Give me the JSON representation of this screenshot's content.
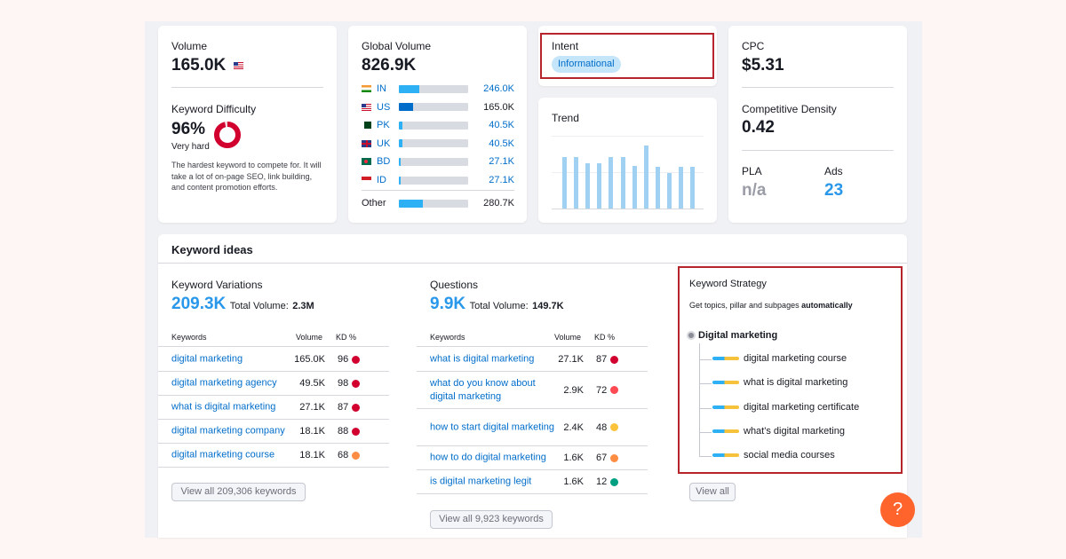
{
  "volume": {
    "label": "Volume",
    "value": "165.0K",
    "flag": "us"
  },
  "kd": {
    "label": "Keyword Difficulty",
    "value": "96%",
    "level": "Very hard",
    "percent": 96,
    "color": "#d1002f",
    "description": "The hardest keyword to compete for. It will take a lot of on-page SEO, link building, and content promotion efforts."
  },
  "global": {
    "label": "Global Volume",
    "value": "826.9K",
    "countries": [
      {
        "code": "IN",
        "flag": "in",
        "value": "246.0K",
        "share": 0.3,
        "linked": true
      },
      {
        "code": "US",
        "flag": "us",
        "value": "165.0K",
        "share": 0.2,
        "linked": false
      },
      {
        "code": "PK",
        "flag": "pk",
        "value": "40.5K",
        "share": 0.05,
        "linked": true
      },
      {
        "code": "UK",
        "flag": "uk",
        "value": "40.5K",
        "share": 0.05,
        "linked": true
      },
      {
        "code": "BD",
        "flag": "bd",
        "value": "27.1K",
        "share": 0.03,
        "linked": true
      },
      {
        "code": "ID",
        "flag": "id",
        "value": "27.1K",
        "share": 0.03,
        "linked": true
      }
    ],
    "other": {
      "label": "Other",
      "value": "280.7K",
      "share": 0.34
    }
  },
  "intent": {
    "label": "Intent",
    "badge": "Informational"
  },
  "trend": {
    "label": "Trend",
    "values": [
      0.7,
      0.7,
      0.62,
      0.62,
      0.7,
      0.7,
      0.58,
      0.85,
      0.57,
      0.48,
      0.57,
      0.57
    ]
  },
  "cpc": {
    "label": "CPC",
    "value": "$5.31"
  },
  "density": {
    "label": "Competitive Density",
    "value": "0.42"
  },
  "pla": {
    "label": "PLA",
    "value": "n/a"
  },
  "ads": {
    "label": "Ads",
    "value": "23"
  },
  "ideas": {
    "title": "Keyword ideas",
    "variations": {
      "title": "Keyword Variations",
      "count": "209.3K",
      "total_label": "Total Volume:",
      "total": "2.3M",
      "headers": {
        "keyword": "Keywords",
        "volume": "Volume",
        "kd": "KD %"
      },
      "rows": [
        {
          "keyword": "digital marketing",
          "volume": "165.0K",
          "kd": "96",
          "color": "#d1002f"
        },
        {
          "keyword": "digital marketing agency",
          "volume": "49.5K",
          "kd": "98",
          "color": "#d1002f"
        },
        {
          "keyword": "what is digital marketing",
          "volume": "27.1K",
          "kd": "87",
          "color": "#d1002f"
        },
        {
          "keyword": "digital marketing company",
          "volume": "18.1K",
          "kd": "88",
          "color": "#d1002f"
        },
        {
          "keyword": "digital marketing course",
          "volume": "18.1K",
          "kd": "68",
          "color": "#ff8c43"
        }
      ],
      "button": "View all 209,306 keywords"
    },
    "questions": {
      "title": "Questions",
      "count": "9.9K",
      "total_label": "Total Volume:",
      "total": "149.7K",
      "headers": {
        "keyword": "Keywords",
        "volume": "Volume",
        "kd": "KD %"
      },
      "rows": [
        {
          "keyword": "what is digital marketing",
          "volume": "27.1K",
          "kd": "87",
          "color": "#d1002f"
        },
        {
          "keyword": "what do you know about digital marketing",
          "volume": "2.9K",
          "kd": "72",
          "color": "#ff4953"
        },
        {
          "keyword": "how to start digital marketing",
          "volume": "2.4K",
          "kd": "48",
          "color": "#fdc23c"
        },
        {
          "keyword": "how to do digital marketing",
          "volume": "1.6K",
          "kd": "67",
          "color": "#ff8c43"
        },
        {
          "keyword": "is digital marketing legit",
          "volume": "1.6K",
          "kd": "12",
          "color": "#009f81"
        }
      ],
      "button": "View all 9,923 keywords"
    },
    "strategy": {
      "title": "Keyword Strategy",
      "subtitle_plain": "Get topics, pillar and subpages ",
      "subtitle_bold": "automatically",
      "root": "Digital marketing",
      "items": [
        "digital marketing course",
        "what is digital marketing",
        "digital marketing certificate",
        "what's digital marketing",
        "social media courses"
      ],
      "button": "View all"
    }
  },
  "help": {
    "icon": "question-icon",
    "glyph": "?"
  }
}
